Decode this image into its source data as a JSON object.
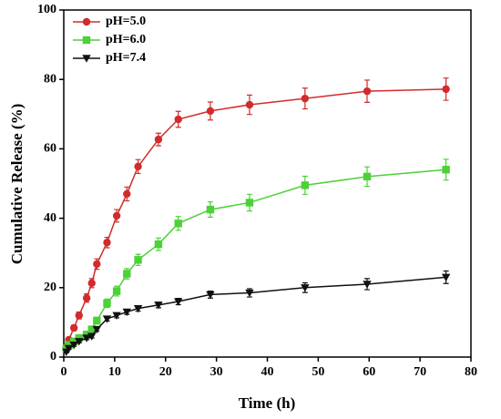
{
  "chart_data": {
    "type": "line",
    "x_label": "Time (h)",
    "y_label": "Cumulative Release (%)",
    "xlim": [
      0,
      80
    ],
    "xticks": [
      0,
      10,
      20,
      30,
      40,
      50,
      60,
      70,
      80
    ],
    "ylim": [
      0,
      100
    ],
    "yticks": [
      0,
      20,
      40,
      60,
      80,
      100
    ],
    "legend": "upper left",
    "series": [
      {
        "name": "pH=5.0",
        "color": "#d22b2b",
        "marker": "circle",
        "x": [
          0.5,
          1,
          2,
          3,
          4.5,
          5.5,
          6.5,
          8.5,
          10.4,
          12.4,
          14.6,
          18.6,
          22.5,
          28.8,
          36.5,
          47.4,
          59.6,
          75.1
        ],
        "values": [
          2.9,
          5,
          8.4,
          12,
          17,
          21.3,
          26.8,
          33,
          40.7,
          47,
          54.9,
          62.7,
          68.5,
          70.9,
          72.7,
          74.5,
          76.6,
          77.2
        ],
        "errors": [
          0.5,
          0.6,
          0.8,
          1,
          1.2,
          1.3,
          1.5,
          1.5,
          1.8,
          2,
          2,
          1.8,
          2.3,
          2.6,
          2.8,
          3,
          3.2,
          3.2
        ]
      },
      {
        "name": "pH=6.0",
        "color": "#4cd137",
        "marker": "square",
        "x": [
          0.5,
          1,
          2,
          3,
          4.5,
          5.5,
          6.5,
          8.5,
          10.4,
          12.4,
          14.6,
          18.6,
          22.5,
          28.8,
          36.5,
          47.4,
          59.6,
          75.1
        ],
        "values": [
          2.5,
          3.5,
          4.5,
          5.5,
          6.5,
          8,
          10.5,
          15.5,
          19,
          24,
          28,
          32.5,
          38.5,
          42.5,
          44.5,
          49.5,
          52,
          54
        ],
        "errors": [
          0.4,
          0.5,
          0.5,
          0.6,
          0.7,
          0.8,
          1,
          1.2,
          1.4,
          1.5,
          1.6,
          1.8,
          2,
          2.2,
          2.4,
          2.6,
          2.8,
          3
        ]
      },
      {
        "name": "pH=7.4",
        "color": "#111111",
        "marker": "triangle-down",
        "x": [
          0.5,
          1,
          2,
          3,
          4.5,
          5.5,
          6.5,
          8.5,
          10.4,
          12.4,
          14.6,
          18.6,
          22.5,
          28.8,
          36.5,
          47.4,
          59.6,
          75.1
        ],
        "values": [
          1.5,
          2.5,
          3.5,
          4.5,
          5.5,
          6,
          8,
          11,
          12,
          13,
          14,
          15,
          16,
          18,
          18.5,
          20,
          21,
          23
        ],
        "errors": [
          0.3,
          0.3,
          0.4,
          0.4,
          0.5,
          0.5,
          0.6,
          0.6,
          0.7,
          0.7,
          0.8,
          0.8,
          0.9,
          1,
          1.2,
          1.4,
          1.6,
          1.8
        ]
      }
    ]
  }
}
